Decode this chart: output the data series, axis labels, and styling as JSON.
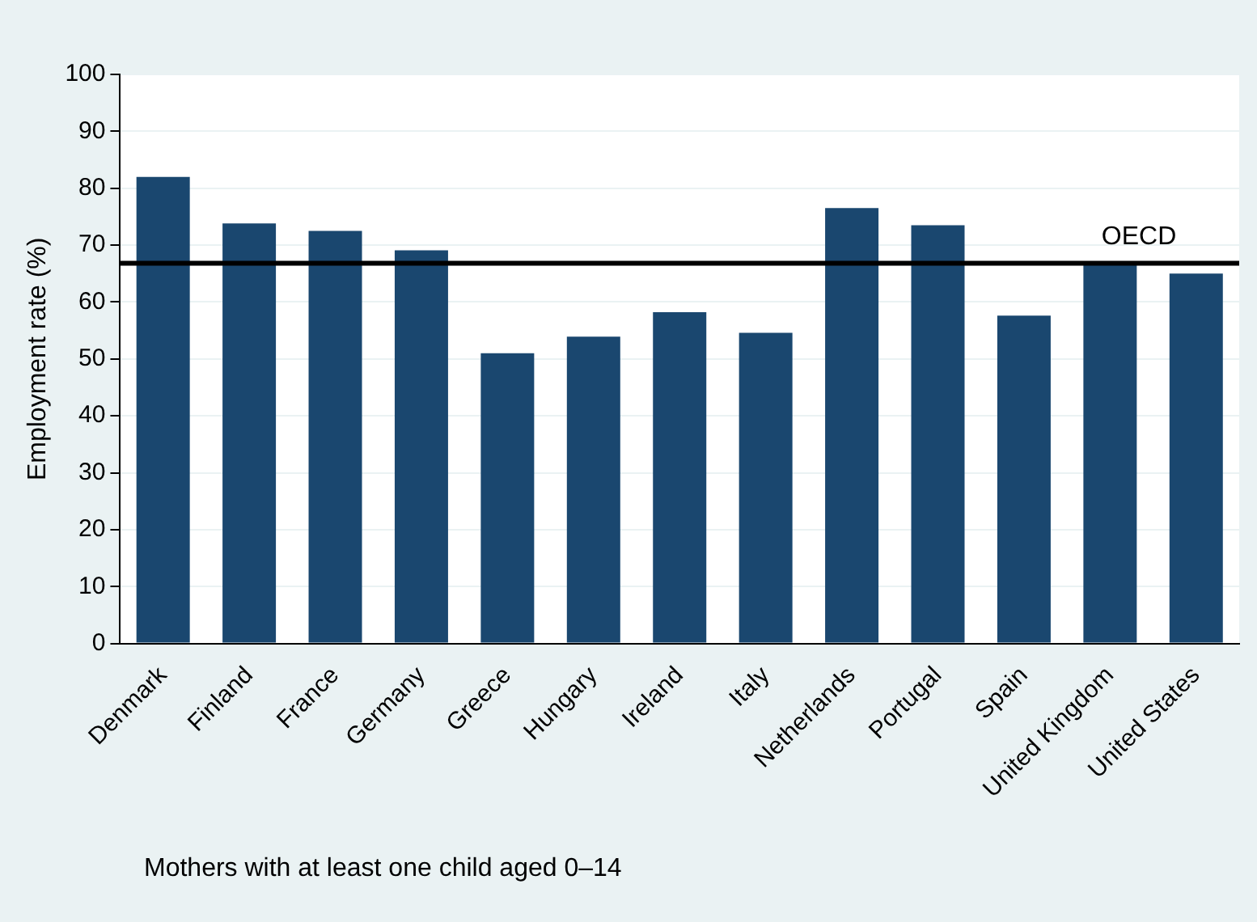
{
  "chart_data": {
    "type": "bar",
    "ylabel": "Employment rate (%)",
    "categories": [
      "Denmark",
      "Finland",
      "France",
      "Germany",
      "Greece",
      "Hungary",
      "Ireland",
      "Italy",
      "Netherlands",
      "Portugal",
      "Spain",
      "United Kingdom",
      "United States"
    ],
    "values": [
      82,
      73.8,
      72.5,
      69.1,
      51,
      53.9,
      58.2,
      54.6,
      76.5,
      73.5,
      57.6,
      66.7,
      65
    ],
    "color": "#1a476f",
    "ylim": [
      0,
      100
    ],
    "yticks": [
      0,
      10,
      20,
      30,
      40,
      50,
      60,
      70,
      80,
      90,
      100
    ],
    "grid": "y",
    "ref_lines": [
      {
        "axis": "y",
        "value": 66.8,
        "label": "OECD",
        "color": "#000000"
      }
    ],
    "annotations": [
      "Mothers with at least one child aged 0–14"
    ]
  }
}
